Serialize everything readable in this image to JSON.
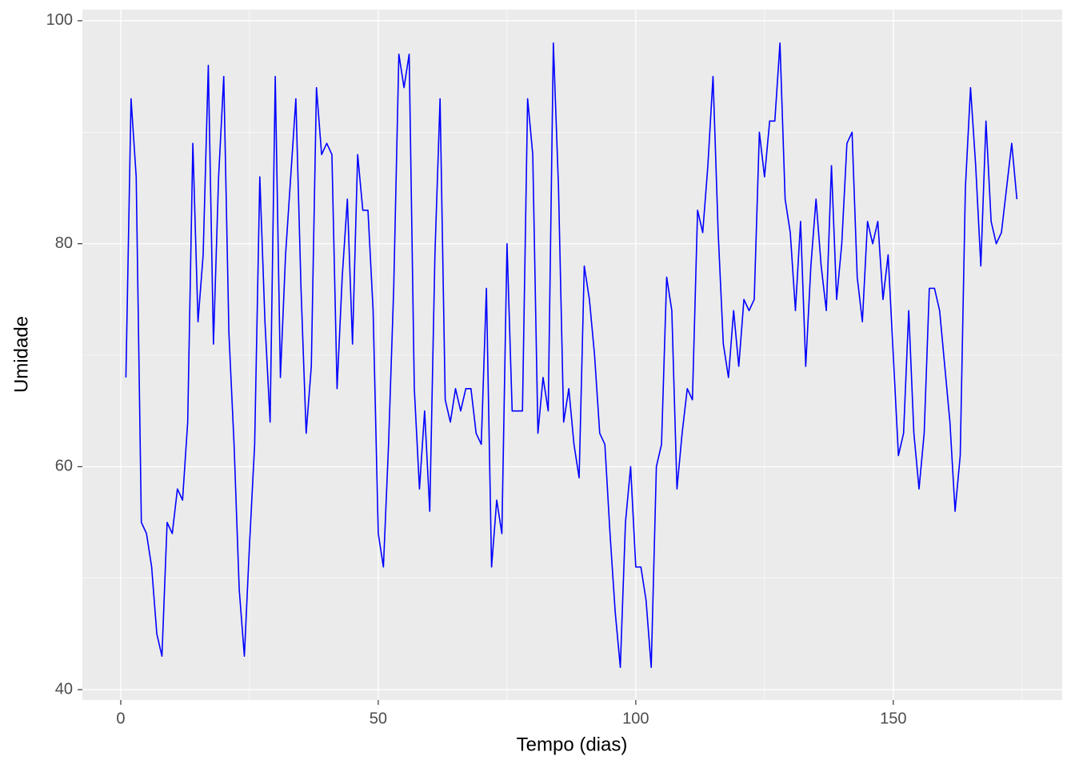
{
  "chart_data": {
    "type": "line",
    "x_label": "Tempo (dias)",
    "y_label": "Umidade",
    "x": [
      1,
      2,
      3,
      4,
      5,
      6,
      7,
      8,
      9,
      10,
      11,
      12,
      13,
      14,
      15,
      16,
      17,
      18,
      19,
      20,
      21,
      22,
      23,
      24,
      25,
      26,
      27,
      28,
      29,
      30,
      31,
      32,
      33,
      34,
      35,
      36,
      37,
      38,
      39,
      40,
      41,
      42,
      43,
      44,
      45,
      46,
      47,
      48,
      49,
      50,
      51,
      52,
      53,
      54,
      55,
      56,
      57,
      58,
      59,
      60,
      61,
      62,
      63,
      64,
      65,
      66,
      67,
      68,
      69,
      70,
      71,
      72,
      73,
      74,
      75,
      76,
      77,
      78,
      79,
      80,
      81,
      82,
      83,
      84,
      85,
      86,
      87,
      88,
      89,
      90,
      91,
      92,
      93,
      94,
      95,
      96,
      97,
      98,
      99,
      100,
      101,
      102,
      103,
      104,
      105,
      106,
      107,
      108,
      109,
      110,
      111,
      112,
      113,
      114,
      115,
      116,
      117,
      118,
      119,
      120,
      121,
      122,
      123,
      124,
      125,
      126,
      127,
      128,
      129,
      130,
      131,
      132,
      133,
      134,
      135,
      136,
      137,
      138,
      139,
      140,
      141,
      142,
      143,
      144,
      145,
      146,
      147,
      148,
      149,
      150,
      151,
      152,
      153,
      154,
      155,
      156,
      157,
      158,
      159,
      160,
      161,
      162,
      163,
      164,
      165,
      166,
      167,
      168,
      169,
      170,
      171,
      172,
      173,
      174
    ],
    "series": [
      {
        "color": "#0000ff",
        "values": [
          68,
          93,
          86,
          55,
          54,
          51,
          45,
          43,
          55,
          54,
          58,
          57,
          64,
          89,
          73,
          79,
          96,
          71,
          86,
          95,
          72,
          62,
          49,
          43,
          53,
          62,
          86,
          73,
          64,
          95,
          68,
          79,
          86,
          93,
          76,
          63,
          69,
          94,
          88,
          89,
          88,
          67,
          77,
          84,
          71,
          88,
          83,
          83,
          74,
          54,
          51,
          62,
          76,
          97,
          94,
          97,
          67,
          58,
          65,
          56,
          79,
          93,
          66,
          64,
          67,
          65,
          67,
          67,
          63,
          62,
          76,
          51,
          57,
          54,
          80,
          65,
          65,
          65,
          93,
          88,
          63,
          68,
          65,
          98,
          85,
          64,
          67,
          62,
          59,
          78,
          75,
          70,
          63,
          62,
          54,
          47,
          42,
          55,
          60,
          51,
          51,
          48,
          42,
          60,
          62,
          77,
          74,
          58,
          63,
          67,
          66,
          83,
          81,
          87,
          95,
          81,
          71,
          68,
          74,
          69,
          75,
          74,
          75,
          90,
          86,
          91,
          91,
          98,
          84,
          81,
          74,
          82,
          69,
          78,
          84,
          78,
          74,
          87,
          75,
          80,
          89,
          90,
          77,
          73,
          82,
          80,
          82,
          75,
          79,
          70,
          61,
          63,
          74,
          63,
          58,
          63,
          76,
          76,
          74,
          69,
          64,
          56,
          61,
          85,
          94,
          87,
          78,
          91,
          82,
          80,
          81,
          85,
          89,
          84
        ]
      }
    ],
    "xlim": [
      -7.45,
      182.8
    ],
    "xticks": [
      0,
      50,
      100,
      150
    ],
    "ylim": [
      39.07,
      101.0
    ],
    "yticks": [
      40,
      60,
      80,
      100
    ],
    "grid": true
  }
}
